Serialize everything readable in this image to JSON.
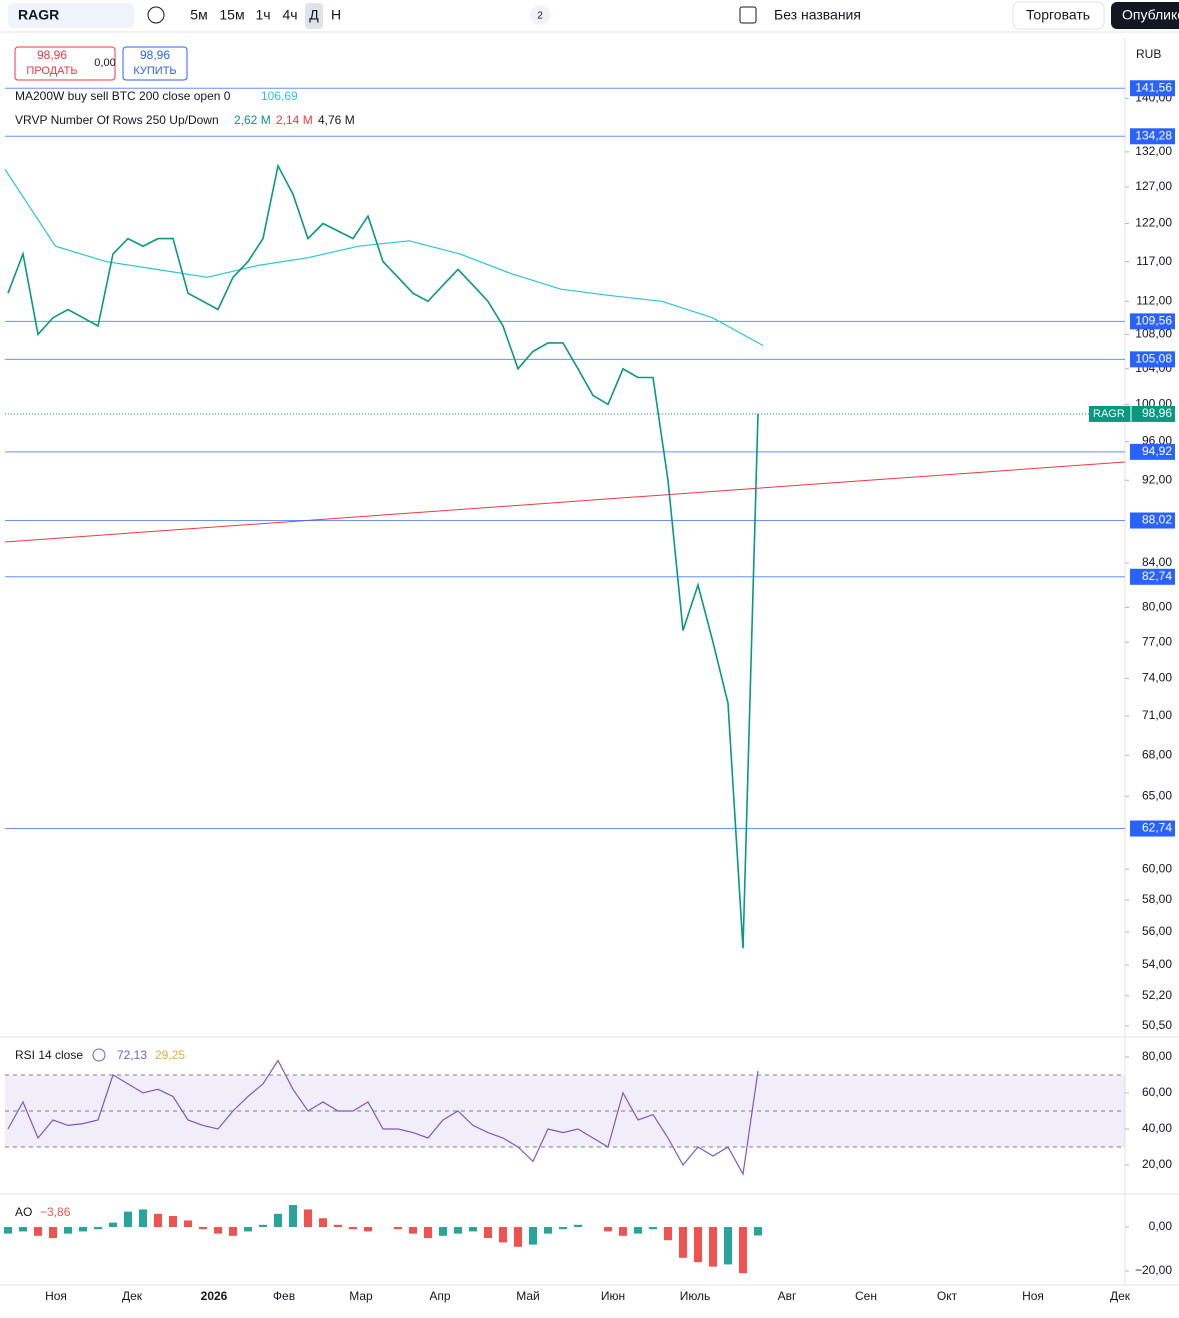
{
  "toolbar": {
    "symbol": "RAGR",
    "intervals": [
      "5м",
      "15м",
      "1ч",
      "4ч",
      "Д",
      "Н"
    ],
    "layouts_count": 2,
    "layout_name": "Без названия",
    "trade": "Торговать",
    "publish": "Опубликовать"
  },
  "trade_panel": {
    "sell": {
      "value": 98.96,
      "label": "98,96"
    },
    "sell_text": "ПРОДАТЬ",
    "spread": {
      "value": 0,
      "label": "0,00"
    },
    "buy": {
      "value": 98.96,
      "label": "98,96"
    },
    "buy_text": "КУПИТЬ"
  },
  "chart_data": [
    {
      "type": "line",
      "currency": "RUB",
      "log_scale": true,
      "ylim": [
        50,
        149.6
      ],
      "yticks": [
        {
          "value": 140,
          "label": "140,00"
        },
        {
          "value": 132,
          "label": "132,00"
        },
        {
          "value": 127,
          "label": "127,00"
        },
        {
          "value": 122,
          "label": "122,00"
        },
        {
          "value": 117,
          "label": "117,00"
        },
        {
          "value": 112,
          "label": "112,00"
        },
        {
          "value": 108,
          "label": "108,00"
        },
        {
          "value": 104,
          "label": "104,00"
        },
        {
          "value": 100,
          "label": "100,00"
        },
        {
          "value": 96,
          "label": "96,00"
        },
        {
          "value": 92,
          "label": "92,00"
        },
        {
          "value": 84,
          "label": "84,00"
        },
        {
          "value": 80,
          "label": "80,00"
        },
        {
          "value": 77,
          "label": "77,00"
        },
        {
          "value": 74,
          "label": "74,00"
        },
        {
          "value": 71,
          "label": "71,00"
        },
        {
          "value": 68,
          "label": "68,00"
        },
        {
          "value": 65,
          "label": "65,00"
        },
        {
          "value": 60,
          "label": "60,00"
        },
        {
          "value": 58,
          "label": "58,00"
        },
        {
          "value": 56,
          "label": "56,00"
        },
        {
          "value": 54,
          "label": "54,00"
        },
        {
          "value": 52.2,
          "label": "52,20"
        },
        {
          "value": 50.5,
          "label": "50,50"
        }
      ],
      "time_labels": [
        "Ноя",
        "Дек",
        "2026",
        "Фев",
        "Мар",
        "Апр",
        "Май",
        "Июн",
        "Июль",
        "Авг",
        "Сен",
        "Окт",
        "Ноя",
        "Дек"
      ],
      "series": [
        {
          "name": "RAGR",
          "color": "#089981",
          "values": [
            113,
            118,
            108,
            110,
            111,
            110,
            109,
            118,
            120,
            119,
            120,
            120,
            113,
            112,
            111,
            115,
            117,
            120,
            130,
            126,
            120,
            122,
            121,
            120,
            123,
            117,
            115,
            113,
            112,
            114,
            116,
            114,
            112,
            109,
            104,
            106,
            107,
            107,
            104,
            101,
            100,
            104,
            103,
            103,
            92,
            78,
            82,
            77,
            72,
            55,
            98.96
          ]
        },
        {
          "name": "MA200W buy sell BTC 200 close open 0",
          "color": "#26c6da",
          "values": [
            129.5,
            119,
            117,
            116,
            115,
            116.5,
            117.5,
            119,
            119.7,
            118,
            115.5,
            113.5,
            112.7,
            112,
            110,
            106.69
          ],
          "last_label": "106,69"
        }
      ],
      "volume_profile": {
        "name": "VRVP Number Of Rows 250 Up/Down",
        "up": {
          "value": 2.62,
          "label": "2,62 M"
        },
        "down": {
          "value": 2.14,
          "label": "2,14 M"
        },
        "total": {
          "value": 4.76,
          "label": "4,76 M"
        }
      },
      "levels": [
        {
          "value": 141.56,
          "label": "141,56"
        },
        {
          "value": 134.28,
          "label": "134,28"
        },
        {
          "value": 109.56,
          "label": "109,56"
        },
        {
          "value": 105.08,
          "label": "105,08"
        },
        {
          "value": 94.92,
          "label": "94,92"
        },
        {
          "value": 88.02,
          "label": "88,02"
        },
        {
          "value": 82.74,
          "label": "82,74"
        },
        {
          "value": 62.74,
          "label": "62,74"
        }
      ],
      "last_price": {
        "value": 98.96,
        "label": "98,96"
      }
    },
    {
      "type": "line",
      "title": "RSI 14 close",
      "ylim": [
        5,
        89.4
      ],
      "color": "#7e57c2",
      "yticks": [
        {
          "value": 80,
          "label": "80,00"
        },
        {
          "value": 60,
          "label": "60,00"
        },
        {
          "value": 40,
          "label": "40,00"
        },
        {
          "value": 20,
          "label": "20,00"
        }
      ],
      "bands": [
        70,
        50,
        30
      ],
      "values": [
        40,
        55,
        35,
        45,
        42,
        43,
        45,
        70,
        65,
        60,
        62,
        58,
        45,
        42,
        40,
        50,
        58,
        65,
        78,
        62,
        50,
        55,
        50,
        50,
        55,
        40,
        40,
        38,
        35,
        45,
        50,
        42,
        38,
        35,
        30,
        22,
        40,
        38,
        40,
        35,
        30,
        60,
        45,
        48,
        35,
        20,
        30,
        25,
        30,
        15,
        72.13
      ],
      "legend_values": [
        {
          "value": 72.13,
          "label": "72,13",
          "color": "#7e57c2"
        },
        {
          "value": 29.25,
          "label": "29,25",
          "color": "#e0b13a"
        }
      ]
    },
    {
      "type": "bar",
      "title": "AO",
      "ylim": [
        -25,
        13.2
      ],
      "colors": {
        "up": "#26a69a",
        "down": "#ef5350"
      },
      "yticks": [
        {
          "value": 0,
          "label": "0,00"
        },
        {
          "value": -20,
          "label": "−20,00"
        }
      ],
      "values": [
        -3,
        -2,
        -4,
        -5,
        -3,
        -2,
        -1,
        2,
        7,
        8,
        6,
        5,
        3,
        -1,
        -3,
        -4,
        -2,
        1,
        6,
        10,
        8,
        4,
        1,
        -1,
        -2,
        0,
        -1,
        -3,
        -5,
        -4,
        -3,
        -2,
        -5,
        -7,
        -9,
        -8,
        -3,
        -1,
        1,
        0,
        -2,
        -4,
        -3,
        -1,
        -6,
        -14,
        -16,
        -18,
        -17,
        -21,
        -3.86
      ],
      "last": {
        "value": -3.86,
        "label": "−3,86"
      }
    }
  ]
}
